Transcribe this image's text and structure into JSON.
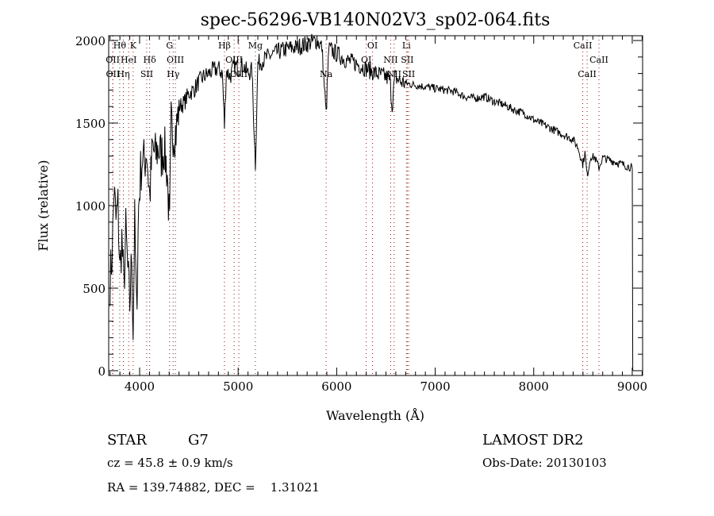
{
  "chart_data": {
    "type": "line",
    "title": "spec-56296-VB140N02V3_sp02-064.fits",
    "xlabel": "Wavelength (Å)",
    "ylabel": "Flux (relative)",
    "xlim": [
      3686,
      9105
    ],
    "ylim": [
      -29,
      2029
    ],
    "xticks": [
      4000,
      5000,
      6000,
      7000,
      8000,
      9000
    ],
    "xtick_labels": [
      "4000",
      "5000",
      "6000",
      "7000",
      "8000",
      "9000"
    ],
    "yticks": [
      0,
      500,
      1000,
      1500,
      2000
    ],
    "ytick_labels": [
      "0",
      "500",
      "1000",
      "1500",
      "2000"
    ],
    "grid": false,
    "series": [
      {
        "name": "spectrum",
        "color": "#000000",
        "x": [
          3700,
          3720,
          3740,
          3760,
          3780,
          3800,
          3820,
          3840,
          3860,
          3880,
          3900,
          3920,
          3934,
          3950,
          3969,
          3990,
          4010,
          4030,
          4050,
          4070,
          4102,
          4130,
          4160,
          4190,
          4220,
          4250,
          4280,
          4304,
          4320,
          4340,
          4370,
          4400,
          4450,
          4500,
          4550,
          4600,
          4650,
          4700,
          4750,
          4800,
          4840,
          4861,
          4880,
          4920,
          4960,
          5000,
          5050,
          5100,
          5140,
          5175,
          5200,
          5250,
          5300,
          5400,
          5500,
          5600,
          5700,
          5800,
          5850,
          5893,
          5920,
          6000,
          6100,
          6200,
          6300,
          6400,
          6500,
          6540,
          6563,
          6590,
          6650,
          6700,
          6800,
          6900,
          7000,
          7100,
          7200,
          7300,
          7400,
          7500,
          7600,
          7700,
          7800,
          7900,
          8000,
          8100,
          8200,
          8300,
          8400,
          8450,
          8498,
          8520,
          8542,
          8580,
          8620,
          8662,
          8700,
          8800,
          8900,
          8990,
          9000,
          9005
        ],
        "y": [
          550,
          700,
          1100,
          900,
          1000,
          600,
          800,
          500,
          850,
          600,
          400,
          700,
          250,
          900,
          350,
          1000,
          1200,
          1300,
          1250,
          1350,
          1050,
          1350,
          1300,
          1350,
          1300,
          1350,
          1200,
          850,
          1500,
          1450,
          1450,
          1600,
          1620,
          1680,
          1700,
          1750,
          1780,
          1800,
          1820,
          1830,
          1800,
          1480,
          1820,
          1780,
          1850,
          1830,
          1850,
          1800,
          1820,
          1250,
          1860,
          1880,
          1900,
          1930,
          1950,
          1960,
          1980,
          2000,
          1960,
          1550,
          1950,
          1920,
          1880,
          1860,
          1830,
          1800,
          1780,
          1760,
          1600,
          1780,
          1750,
          1740,
          1730,
          1720,
          1710,
          1700,
          1690,
          1660,
          1650,
          1660,
          1630,
          1610,
          1580,
          1560,
          1520,
          1490,
          1460,
          1430,
          1400,
          1350,
          1250,
          1320,
          1180,
          1300,
          1290,
          1230,
          1290,
          1270,
          1250,
          1230,
          1220,
          0
        ]
      }
    ],
    "lines": [
      {
        "label": "Hθ",
        "wavelength": 3798,
        "row": 0
      },
      {
        "label": "K",
        "wavelength": 3934,
        "row": 0
      },
      {
        "label": "G",
        "wavelength": 4304,
        "row": 0
      },
      {
        "label": "Hβ",
        "wavelength": 4861,
        "row": 0
      },
      {
        "label": "Mg",
        "wavelength": 5175,
        "row": 0
      },
      {
        "label": "OI",
        "wavelength": 6364,
        "row": 0
      },
      {
        "label": "Li",
        "wavelength": 6708,
        "row": 0
      },
      {
        "label": "CaII",
        "wavelength": 8498,
        "row": 0
      },
      {
        "label": "OII",
        "wavelength": 3727,
        "row": 1
      },
      {
        "label": "HeI",
        "wavelength": 3889,
        "row": 1
      },
      {
        "label": "Hδ",
        "wavelength": 4102,
        "row": 1
      },
      {
        "label": "OIII",
        "wavelength": 4363,
        "row": 1
      },
      {
        "label": "OIII",
        "wavelength": 4959,
        "row": 1
      },
      {
        "label": "OI",
        "wavelength": 6300,
        "row": 1
      },
      {
        "label": "NII",
        "wavelength": 6548,
        "row": 1
      },
      {
        "label": "SII",
        "wavelength": 6717,
        "row": 1
      },
      {
        "label": "CaII",
        "wavelength": 8662,
        "row": 1
      },
      {
        "label": "OII",
        "wavelength": 3729,
        "row": 2
      },
      {
        "label": "Hη",
        "wavelength": 3835,
        "row": 2
      },
      {
        "label": "SII",
        "wavelength": 4072,
        "row": 2
      },
      {
        "label": "Hγ",
        "wavelength": 4340,
        "row": 2
      },
      {
        "label": "OIII",
        "wavelength": 5007,
        "row": 2
      },
      {
        "label": "Na",
        "wavelength": 5893,
        "row": 2
      },
      {
        "label": "NII",
        "wavelength": 6583,
        "row": 2
      },
      {
        "label": "SII",
        "wavelength": 6731,
        "row": 2
      },
      {
        "label": "CaII",
        "wavelength": 8542,
        "row": 2
      }
    ],
    "line_color": "#8b1a1a"
  },
  "info": {
    "object_class": "STAR",
    "subclass": "G7",
    "survey": "LAMOST DR2",
    "redshift": "cz = 45.8 ± 0.9 km/s",
    "obs_date": "Obs-Date: 20130103",
    "coords": "RA = 139.74882, DEC =    1.31021"
  }
}
